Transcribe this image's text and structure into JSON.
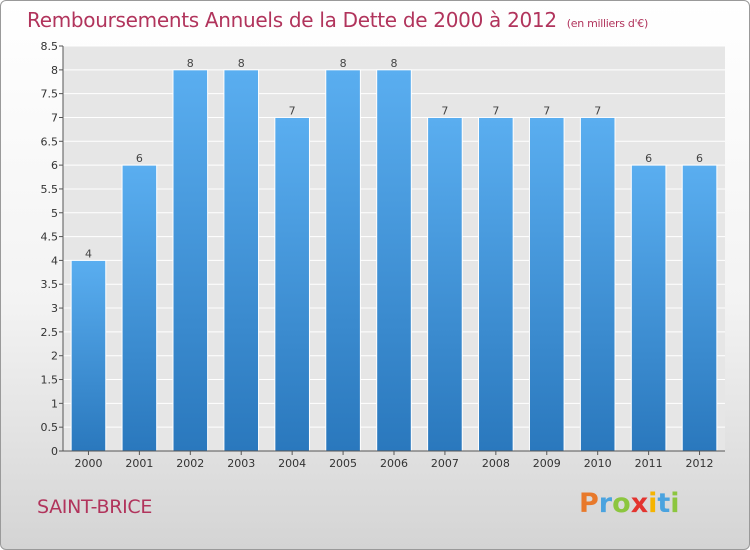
{
  "chart_data": {
    "type": "bar",
    "title": "Remboursements Annuels de la Dette de 2000 à 2012",
    "subtitle": "(en milliers d'€)",
    "categories": [
      "2000",
      "2001",
      "2002",
      "2003",
      "2004",
      "2005",
      "2006",
      "2007",
      "2008",
      "2009",
      "2010",
      "2011",
      "2012"
    ],
    "values": [
      4,
      6,
      8,
      8,
      7,
      8,
      8,
      7,
      7,
      7,
      7,
      6,
      6
    ],
    "ylim": [
      0,
      8.5
    ],
    "yticks": [
      "0",
      "0.5",
      "1",
      "1.5",
      "2",
      "2.5",
      "3",
      "3.5",
      "4",
      "4.5",
      "5",
      "5.5",
      "6",
      "6.5",
      "7",
      "7.5",
      "8",
      "8.5"
    ],
    "grid": true,
    "bar_color": "#3d8fd4"
  },
  "place_name": "SAINT-BRICE",
  "logo": {
    "letters": [
      "P",
      "r",
      "o",
      "x",
      "i",
      "t",
      "i"
    ],
    "colors": [
      "#e8792b",
      "#4aa3df",
      "#8cc63f",
      "#e3342f",
      "#f5b400",
      "#4aa3df",
      "#8cc63f"
    ]
  }
}
